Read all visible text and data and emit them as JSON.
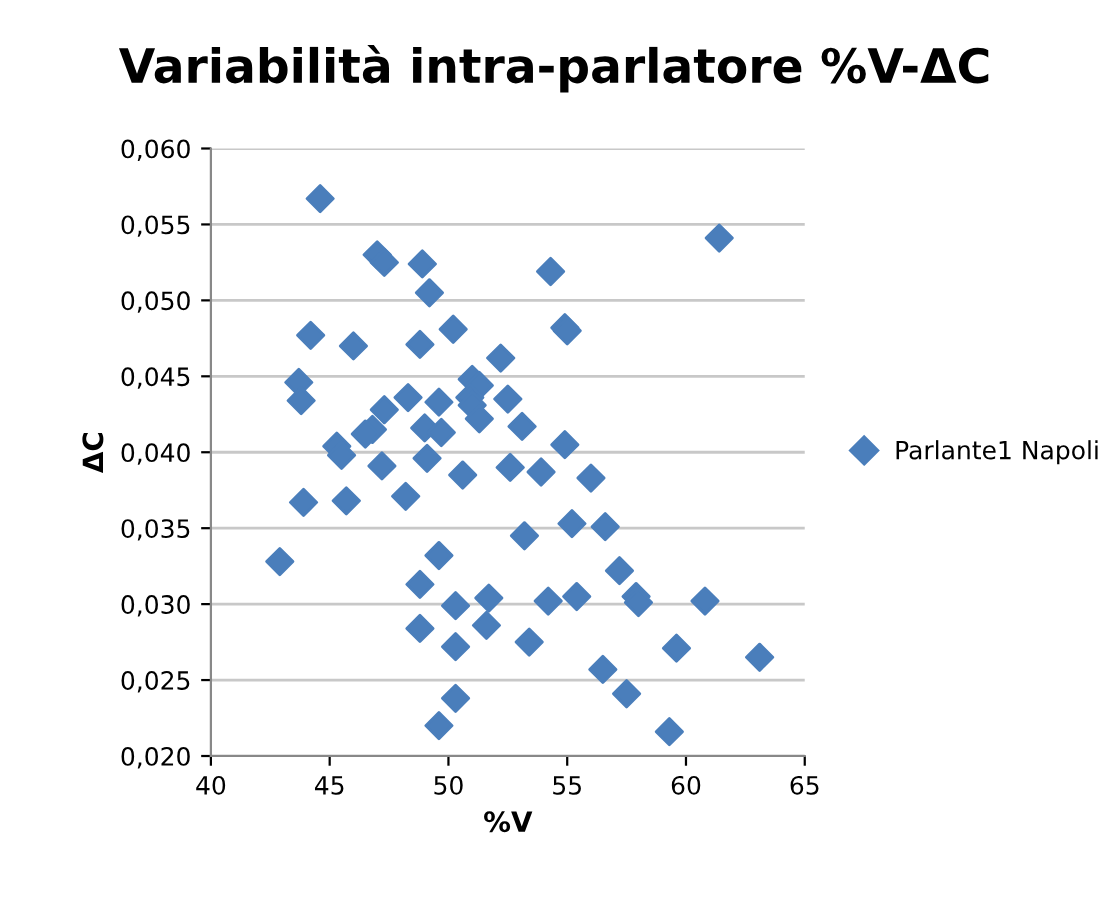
{
  "chart_data": {
    "type": "scatter",
    "title": "Variabilità intra-parlatore %V-ΔC",
    "xlabel": "%V",
    "ylabel": "ΔC",
    "xlim": [
      40,
      65
    ],
    "xticks": [
      40,
      45,
      50,
      55,
      60,
      65
    ],
    "ylim": [
      0.02,
      0.06
    ],
    "yticks": [
      {
        "value": 0.02,
        "label": "0,020"
      },
      {
        "value": 0.025,
        "label": "0,025"
      },
      {
        "value": 0.03,
        "label": "0,030"
      },
      {
        "value": 0.035,
        "label": "0,035"
      },
      {
        "value": 0.04,
        "label": "0,040"
      },
      {
        "value": 0.045,
        "label": "0,045"
      },
      {
        "value": 0.05,
        "label": "0,050"
      },
      {
        "value": 0.055,
        "label": "0,055"
      },
      {
        "value": 0.06,
        "label": "0,060"
      }
    ],
    "grid": "y",
    "legend": "right",
    "marker": "diamond",
    "series": [
      {
        "name": "Parlante1 Napoli",
        "color": "#4a7ebb",
        "x": [
          44.6,
          47.0,
          47.3,
          48.9,
          49.2,
          54.3,
          61.4,
          54.9,
          55.0,
          50.2,
          44.2,
          46.0,
          48.8,
          52.2,
          43.7,
          43.8,
          51.0,
          51.3,
          50.9,
          51.0,
          51.3,
          48.3,
          49.6,
          47.3,
          52.5,
          53.1,
          46.8,
          46.5,
          49.0,
          49.7,
          45.3,
          45.5,
          54.9,
          49.1,
          47.2,
          52.6,
          53.9,
          50.6,
          56.0,
          48.2,
          43.9,
          45.7,
          55.2,
          56.6,
          53.2,
          49.6,
          42.9,
          57.2,
          48.8,
          54.2,
          55.4,
          57.9,
          58.0,
          60.8,
          50.3,
          51.7,
          48.8,
          51.6,
          50.3,
          53.4,
          59.6,
          63.1,
          56.5,
          57.5,
          50.3,
          49.6,
          59.3
        ],
        "values": [
          0.0567,
          0.053,
          0.0525,
          0.0524,
          0.0505,
          0.0519,
          0.0541,
          0.0482,
          0.048,
          0.0481,
          0.0477,
          0.047,
          0.0471,
          0.0462,
          0.0446,
          0.0434,
          0.0448,
          0.0444,
          0.0436,
          0.0431,
          0.0422,
          0.0436,
          0.0433,
          0.0428,
          0.0435,
          0.0417,
          0.0415,
          0.0412,
          0.0416,
          0.0413,
          0.0404,
          0.0398,
          0.0405,
          0.0396,
          0.0391,
          0.039,
          0.0387,
          0.0385,
          0.0383,
          0.0371,
          0.0367,
          0.0368,
          0.0353,
          0.0351,
          0.0345,
          0.0332,
          0.0328,
          0.0322,
          0.0313,
          0.0302,
          0.0305,
          0.0305,
          0.0301,
          0.0302,
          0.0299,
          0.0304,
          0.0284,
          0.0286,
          0.0272,
          0.0275,
          0.0271,
          0.0265,
          0.0257,
          0.0241,
          0.0238,
          0.022,
          0.0216
        ]
      }
    ]
  }
}
